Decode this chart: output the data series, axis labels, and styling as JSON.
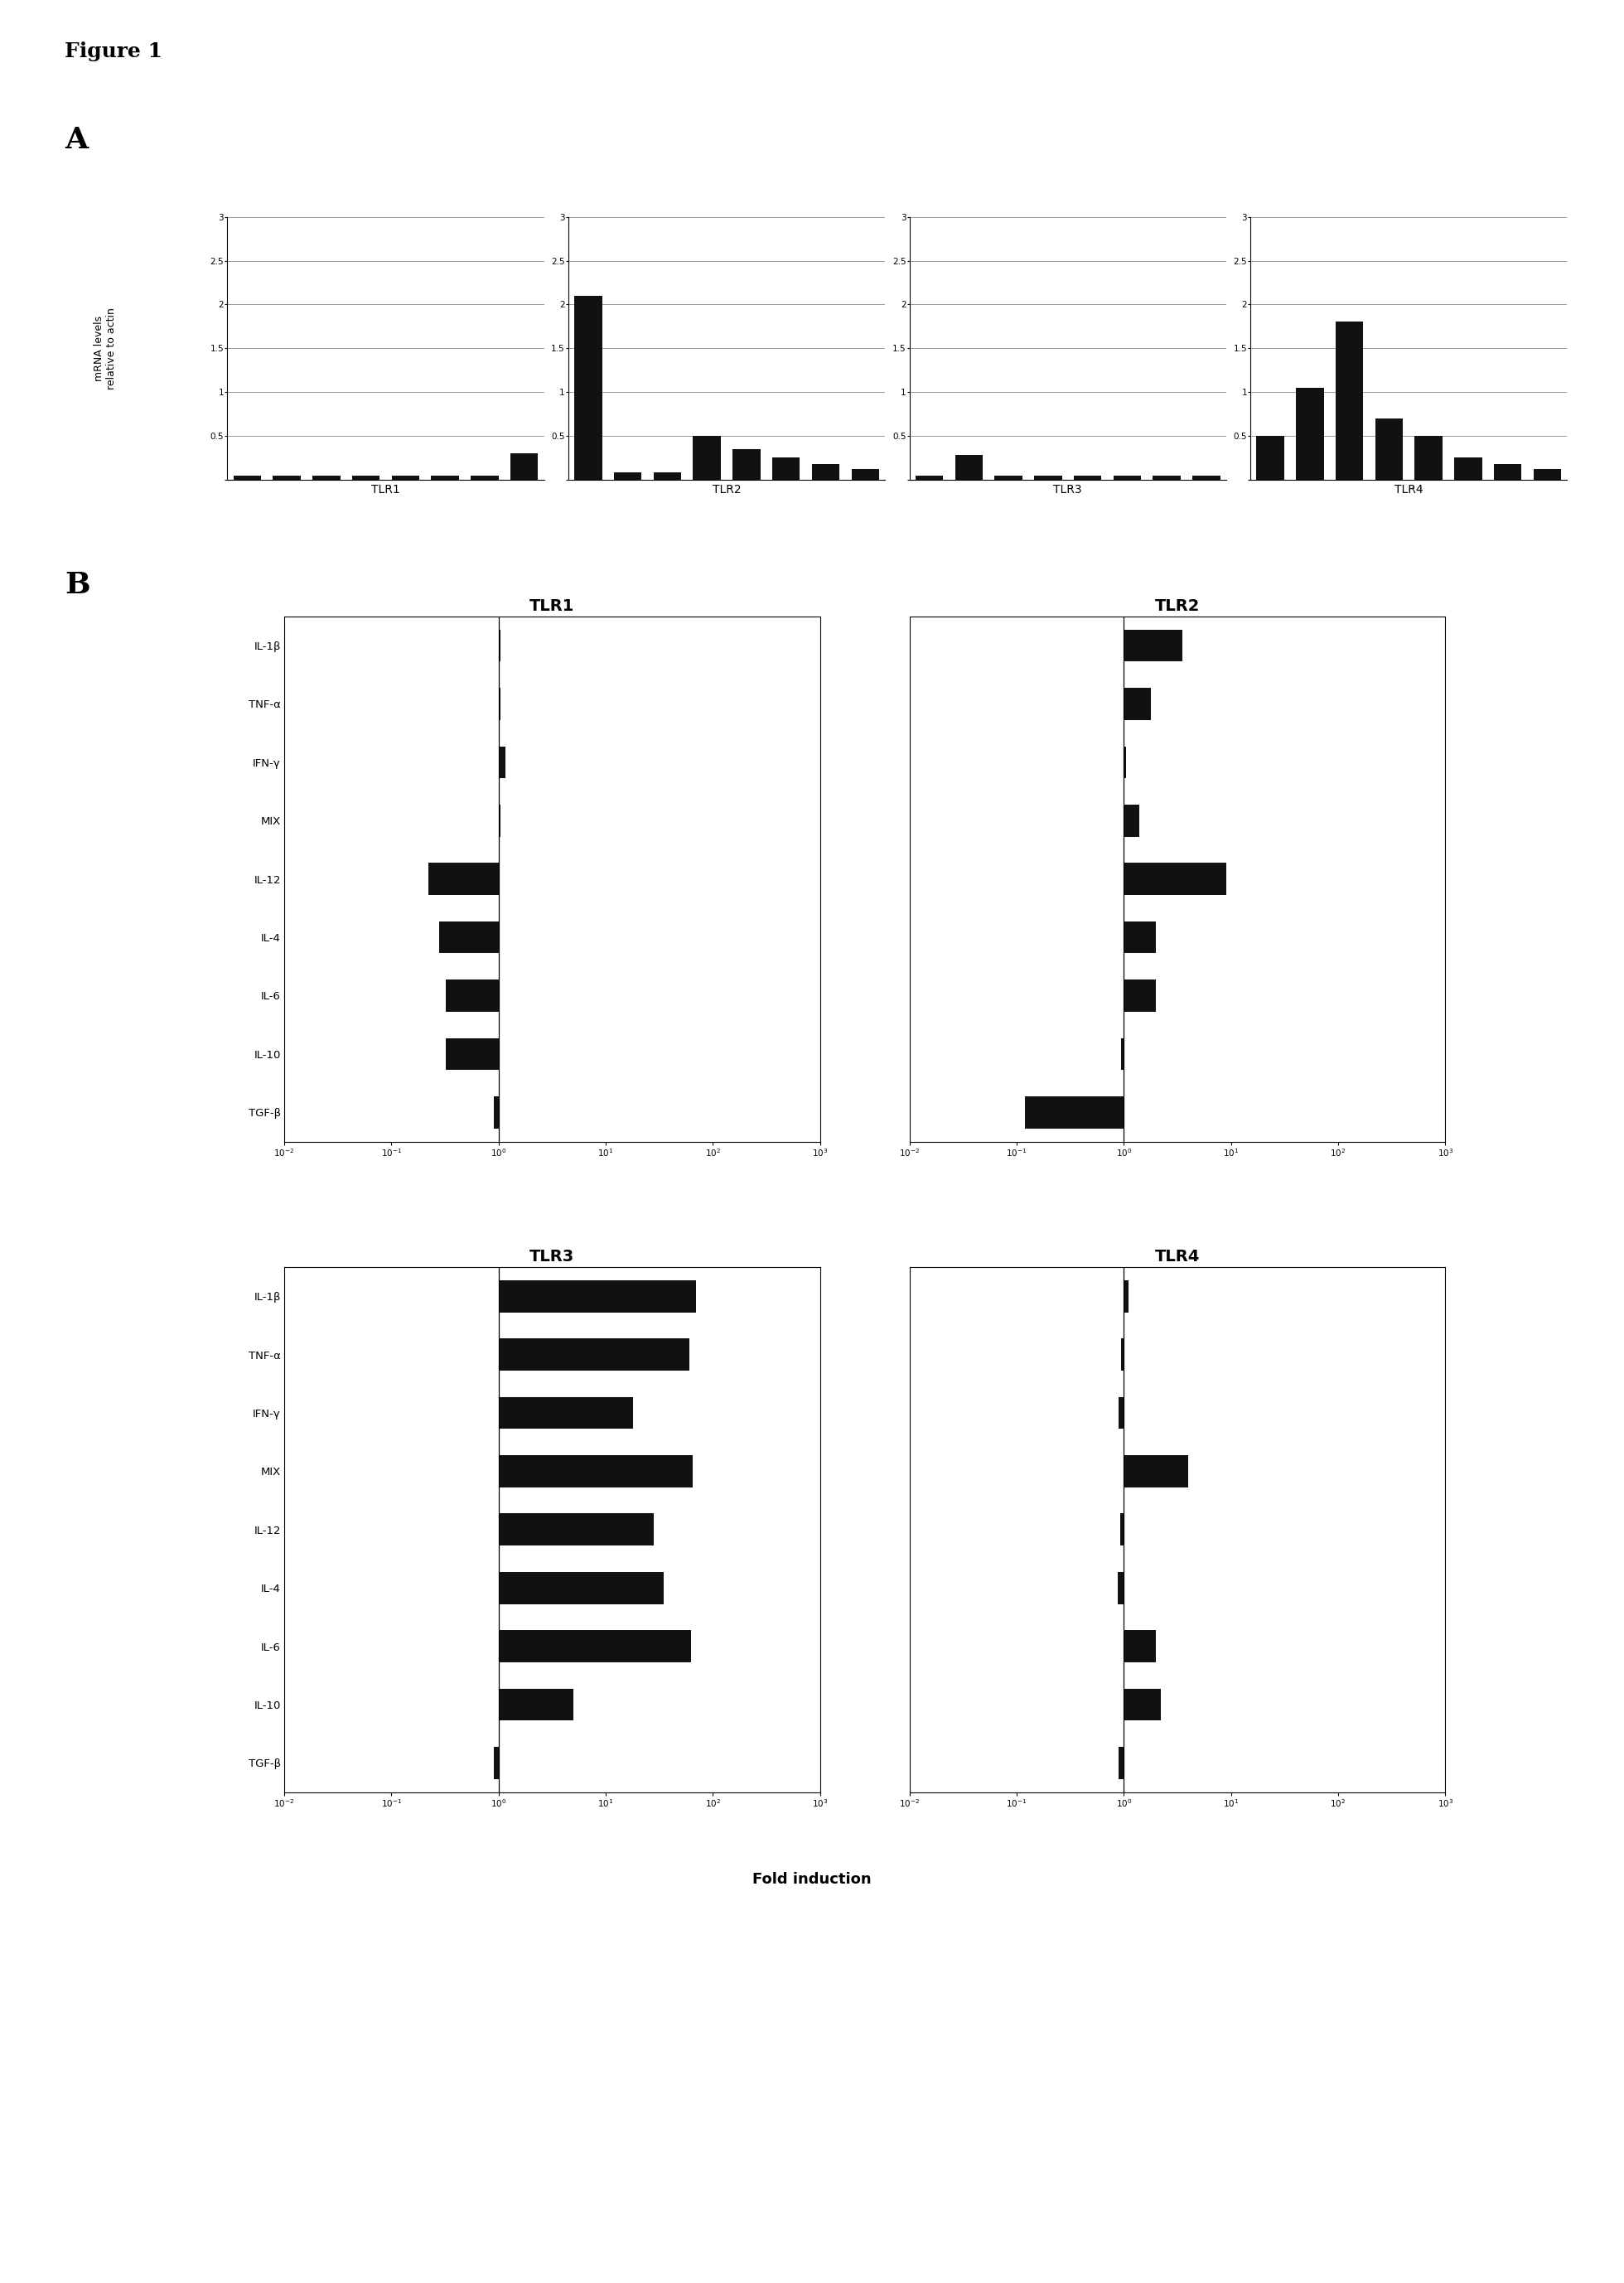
{
  "figure_label": "Figure 1",
  "panel_A_label": "A",
  "panel_B_label": "B",
  "panel_A_ylabel": "mRNA levels\nrelative to actin",
  "panel_A_titles": [
    "TLR1",
    "TLR2",
    "TLR3",
    "TLR4"
  ],
  "panel_A_ylim": [
    0,
    3
  ],
  "panel_A_yticks": [
    0,
    0.5,
    1.0,
    1.5,
    2.0,
    2.5,
    3.0
  ],
  "panel_A_data": {
    "TLR1": [
      0.04,
      0.04,
      0.04,
      0.04,
      0.04,
      0.04,
      0.04,
      0.3
    ],
    "TLR2": [
      2.1,
      0.08,
      0.08,
      0.5,
      0.35,
      0.25,
      0.18,
      0.12
    ],
    "TLR3": [
      0.04,
      0.28,
      0.04,
      0.04,
      0.04,
      0.04,
      0.04,
      0.04
    ],
    "TLR4": [
      0.5,
      1.05,
      1.8,
      0.7,
      0.5,
      0.25,
      0.18,
      0.12
    ]
  },
  "panel_B_cytokines": [
    "IL-1β",
    "TNF-α",
    "IFN-γ",
    "MIX",
    "IL-12",
    "IL-4",
    "IL-6",
    "IL-10",
    "TGF-β"
  ],
  "panel_B_data": {
    "TLR1": [
      1.05,
      1.05,
      1.15,
      1.05,
      0.22,
      0.28,
      0.32,
      0.32,
      0.9
    ],
    "TLR2": [
      3.5,
      1.8,
      1.05,
      1.4,
      9.0,
      2.0,
      2.0,
      0.95,
      0.12
    ],
    "TLR3": [
      70,
      60,
      18,
      65,
      28,
      35,
      62,
      5,
      0.9
    ],
    "TLR4": [
      1.1,
      0.95,
      0.9,
      4.0,
      0.92,
      0.88,
      2.0,
      2.2,
      0.9
    ]
  },
  "panel_B_xlabel": "Fold induction",
  "bar_color": "#111111",
  "bg_color": "#ffffff"
}
